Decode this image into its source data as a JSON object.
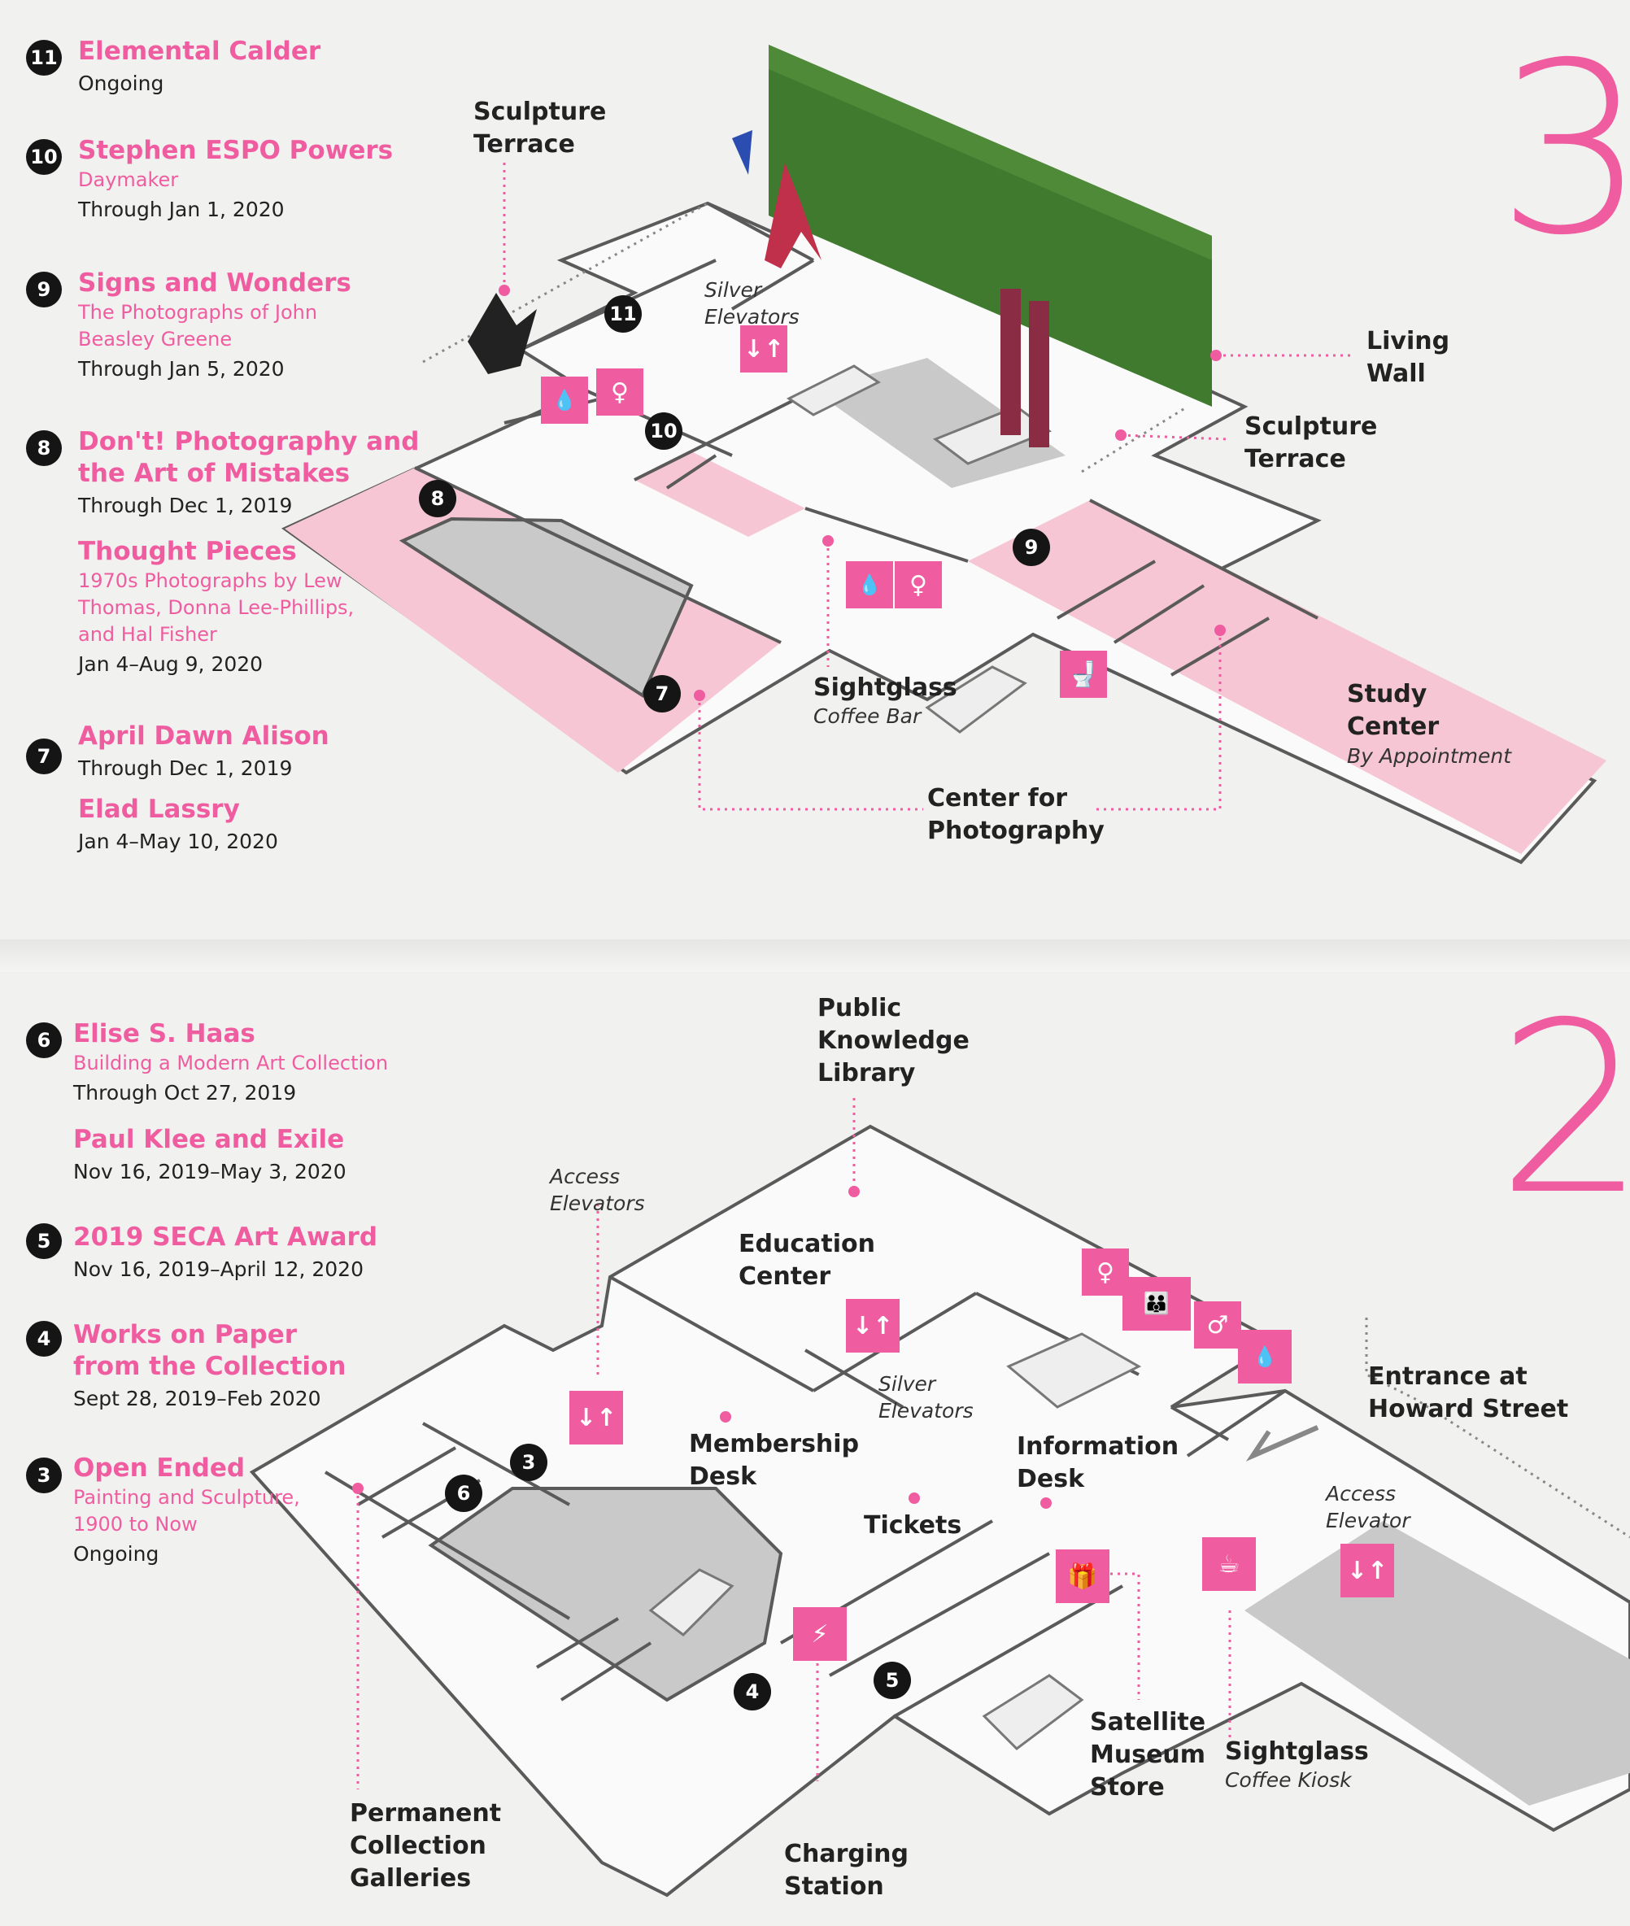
{
  "floor3": {
    "number": "3",
    "exhibitions": [
      {
        "num": "11",
        "title": "Elemental Calder",
        "subtitle": "",
        "dates": "Ongoing"
      },
      {
        "num": "10",
        "title": "Stephen ESPO Powers",
        "subtitle": "Daymaker",
        "dates": "Through Jan 1, 2020"
      },
      {
        "num": "9",
        "title": "Signs and Wonders",
        "subtitle": "The Photographs of John Beasley Greene",
        "dates": "Through Jan 5, 2020"
      },
      {
        "num": "8",
        "title": "Don't! Photography and the Art of Mistakes",
        "subtitle": "",
        "dates": "Through Dec 1, 2019"
      },
      {
        "num": "",
        "title": "Thought Pieces",
        "subtitle": "1970s Photographs by Lew Thomas, Donna Lee-Phillips, and Hal Fisher",
        "dates": "Jan 4–Aug 9, 2020"
      },
      {
        "num": "7",
        "title": "April Dawn Alison",
        "subtitle": "",
        "dates": "Through Dec 1, 2019"
      },
      {
        "num": "",
        "title": "Elad Lassry",
        "subtitle": "",
        "dates": "Jan 4–May 10, 2020"
      }
    ],
    "labels": {
      "sculpture_terrace_top": "Sculpture Terrace",
      "silver_elevators": "Silver Elevators",
      "living_wall": "Living Wall",
      "sculpture_terrace_right": "Sculpture Terrace",
      "sightglass": "Sightglass",
      "coffee_bar": "Coffee Bar",
      "study_center": "Study Center",
      "by_appointment": "By Appointment",
      "center_for_photography": "Center for Photography"
    },
    "map_badges": [
      "11",
      "10",
      "8",
      "9",
      "7"
    ]
  },
  "floor2": {
    "number": "2",
    "exhibitions": [
      {
        "num": "6",
        "title": "Elise S. Haas",
        "subtitle": "Building a Modern Art Collection",
        "dates": "Through Oct 27, 2019"
      },
      {
        "num": "",
        "title": "Paul Klee and Exile",
        "subtitle": "",
        "dates": "Nov 16, 2019–May 3, 2020"
      },
      {
        "num": "5",
        "title": "2019 SECA Art Award",
        "subtitle": "",
        "dates": "Nov 16, 2019–April 12, 2020"
      },
      {
        "num": "4",
        "title": "Works on Paper from the Collection",
        "subtitle": "",
        "dates": "Sept 28, 2019–Feb 2020"
      },
      {
        "num": "3",
        "title": "Open Ended",
        "subtitle": "Painting and Sculpture, 1900 to Now",
        "dates": "Ongoing"
      }
    ],
    "labels": {
      "public_knowledge_library": "Public Knowledge Library",
      "access_elevators": "Access Elevators",
      "education_center": "Education Center",
      "silver_elevators": "Silver Elevators",
      "entrance": "Entrance at Howard Street",
      "membership_desk": "Membership Desk",
      "information_desk": "Information Desk",
      "tickets": "Tickets",
      "access_elevator": "Access Elevator",
      "satellite_store": "Satellite Museum Store",
      "sightglass": "Sightglass",
      "coffee_kiosk": "Coffee Kiosk",
      "permanent_collection": "Permanent Collection Galleries",
      "charging_station": "Charging Station"
    },
    "map_badges": [
      "3",
      "6",
      "4",
      "5"
    ]
  },
  "colors": {
    "accent": "#ef5da0",
    "gallery": "#f6c6d4",
    "gray": "#c9c9c9",
    "badge": "#151515",
    "wall": "#3f7a2e"
  },
  "icons": [
    "water-icon",
    "restroom-icon",
    "elevator-icon",
    "toilet-icon",
    "family-restroom-icon",
    "gift-icon",
    "coffee-icon",
    "charging-icon",
    "arrow-icon"
  ]
}
